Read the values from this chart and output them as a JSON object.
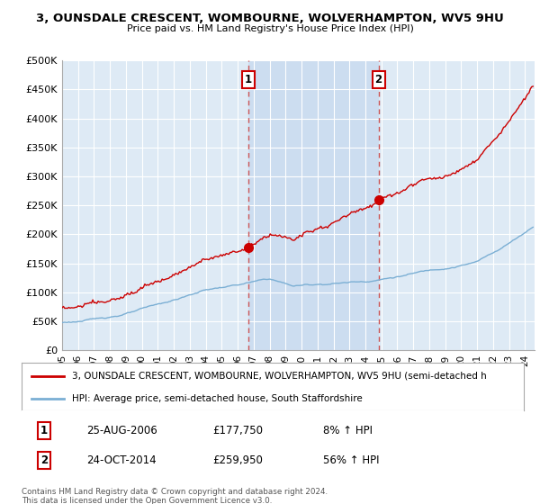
{
  "title": "3, OUNSDALE CRESCENT, WOMBOURNE, WOLVERHAMPTON, WV5 9HU",
  "subtitle": "Price paid vs. HM Land Registry's House Price Index (HPI)",
  "ylim": [
    0,
    500000
  ],
  "yticks": [
    0,
    50000,
    100000,
    150000,
    200000,
    250000,
    300000,
    350000,
    400000,
    450000,
    500000
  ],
  "ytick_labels": [
    "£0",
    "£50K",
    "£100K",
    "£150K",
    "£200K",
    "£250K",
    "£300K",
    "£350K",
    "£400K",
    "£450K",
    "£500K"
  ],
  "sale1_year": 2006.65,
  "sale1_price": 177750,
  "sale1_label": "1",
  "sale1_date": "25-AUG-2006",
  "sale1_pct": "8%",
  "sale2_year": 2014.82,
  "sale2_price": 259950,
  "sale2_label": "2",
  "sale2_date": "24-OCT-2014",
  "sale2_pct": "56%",
  "hpi_color": "#7bafd4",
  "property_color": "#cc0000",
  "dashed_color": "#cc5555",
  "background_color": "#deeaf5",
  "shade_color": "#c5d8ee",
  "grid_color": "#ffffff",
  "legend_label_property": "3, OUNSDALE CRESCENT, WOMBOURNE, WOLVERHAMPTON, WV5 9HU (semi-detached h",
  "legend_label_hpi": "HPI: Average price, semi-detached house, South Staffordshire",
  "footer": "Contains HM Land Registry data © Crown copyright and database right 2024.\nThis data is licensed under the Open Government Licence v3.0."
}
